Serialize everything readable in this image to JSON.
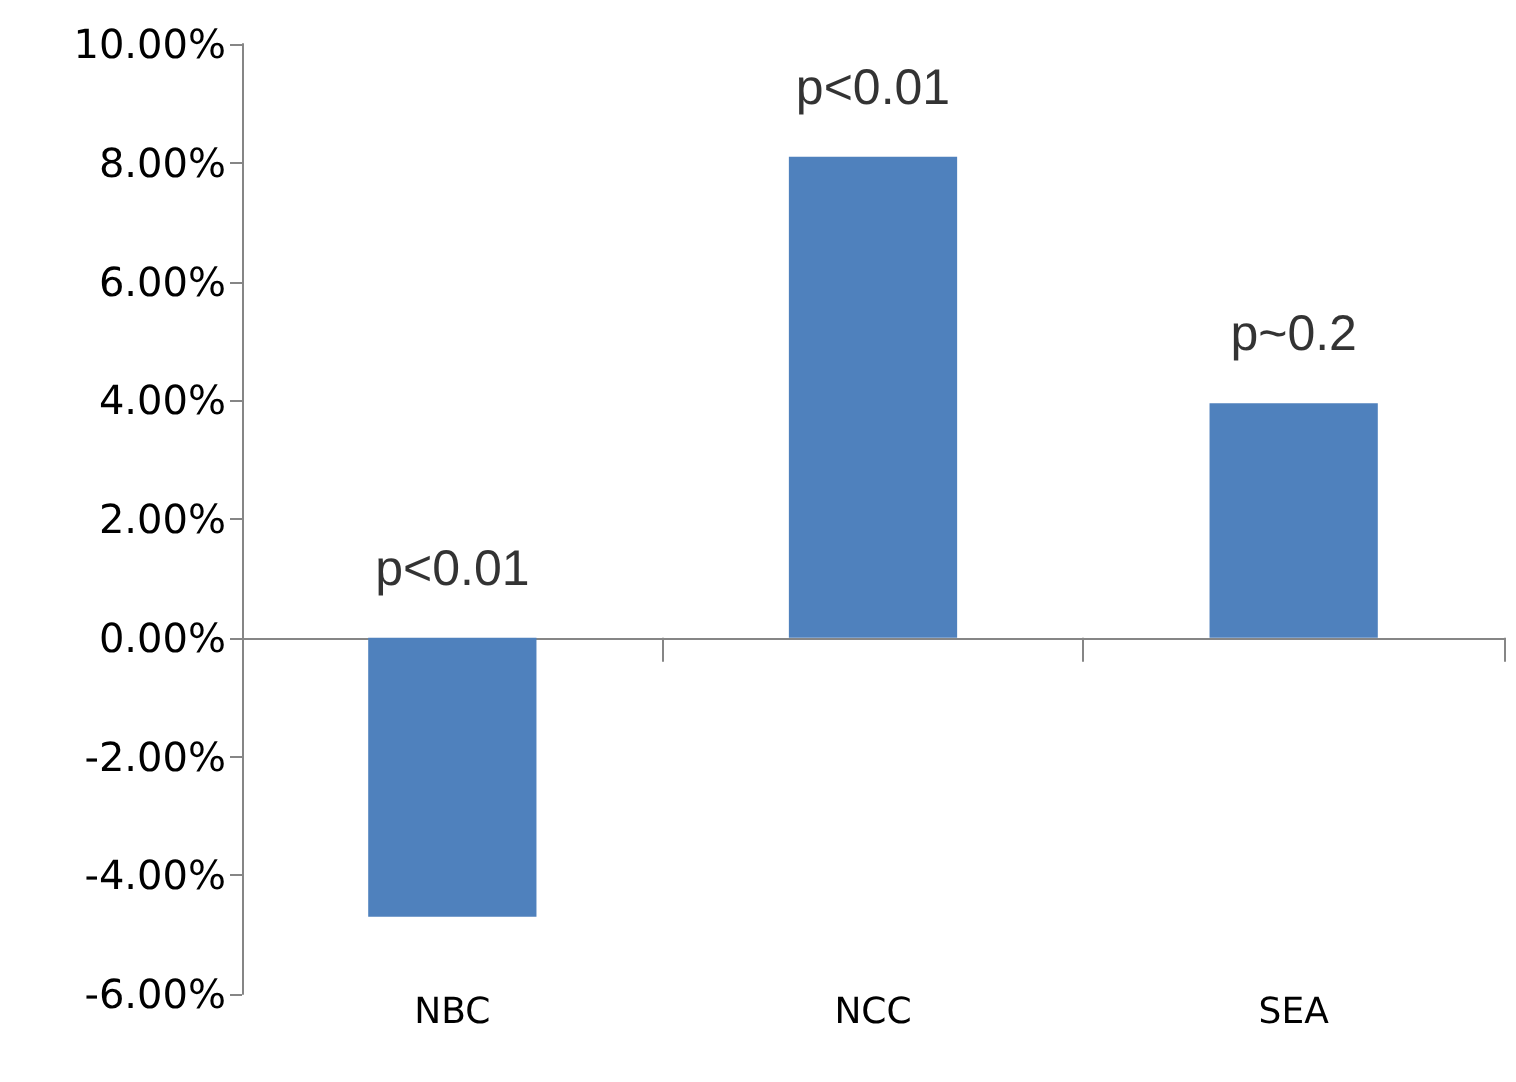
{
  "chart_data": {
    "type": "bar",
    "categories": [
      "NBC",
      "NCC",
      "SEA"
    ],
    "values": [
      -4.7,
      8.1,
      3.95
    ],
    "color": "#4f81bd",
    "ylim": [
      -6,
      10
    ],
    "yticks": [
      {
        "value": -6,
        "label": "-6.00%"
      },
      {
        "value": -4,
        "label": "-4.00%"
      },
      {
        "value": -2,
        "label": "-2.00%"
      },
      {
        "value": 0,
        "label": "0.00%"
      },
      {
        "value": 2,
        "label": "2.00%"
      },
      {
        "value": 4,
        "label": "4.00%"
      },
      {
        "value": 6,
        "label": "6.00%"
      },
      {
        "value": 8,
        "label": "8.00%"
      },
      {
        "value": 10,
        "label": "10.00%"
      }
    ],
    "annotations": [
      {
        "text": "p<0.01",
        "x": "NBC",
        "y": 0
      },
      {
        "text": "p<0.01",
        "x": "NCC",
        "y": 8.1
      },
      {
        "text": "p~0.2",
        "x": "SEA",
        "y": 3.95
      }
    ]
  }
}
